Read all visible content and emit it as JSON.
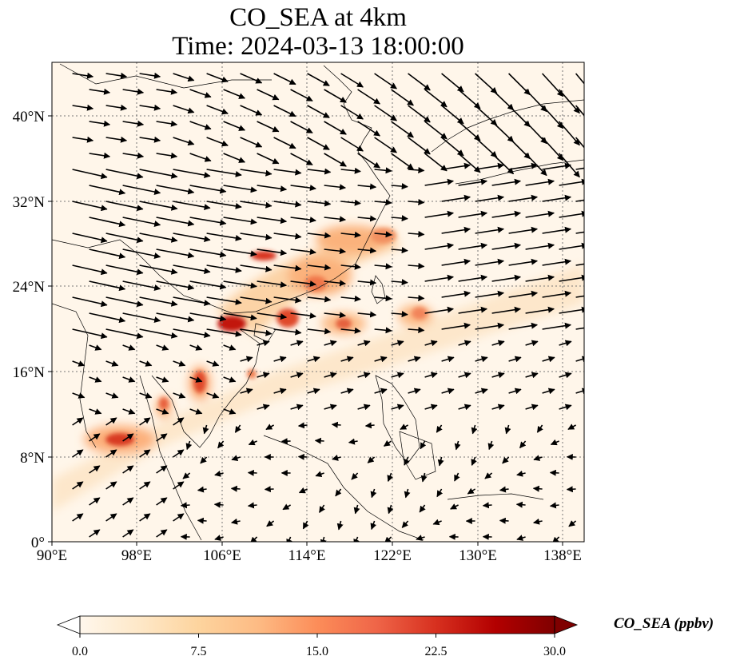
{
  "title": {
    "line1": "CO_SEA at 4km",
    "line2": "Time: 2024-03-13 18:00:00"
  },
  "axes": {
    "lat_ticks": [
      "40°N",
      "32°N",
      "24°N",
      "16°N",
      "8°N",
      "0°"
    ],
    "lon_ticks": [
      "90°E",
      "98°E",
      "106°E",
      "114°E",
      "122°E",
      "130°E",
      "138°E"
    ],
    "lon_range": [
      90,
      140
    ],
    "lat_range": [
      0,
      45
    ],
    "gridlines": true
  },
  "colorbar": {
    "label": "CO_SEA (ppbv)",
    "ticks": [
      "0.0",
      "7.5",
      "15.0",
      "22.5",
      "30.0"
    ],
    "range": [
      0,
      30
    ],
    "extend": "both",
    "colormap": "OrRd",
    "colors": [
      "#fff7ec",
      "#fee8c8",
      "#fdd49e",
      "#fdbb84",
      "#fc8d59",
      "#ef6548",
      "#d7301f",
      "#b30000",
      "#7f0000"
    ]
  },
  "map": {
    "land_outline_color": "#000000",
    "wind_vector_color": "#000000",
    "field_base_color": "#fff6ea"
  }
}
